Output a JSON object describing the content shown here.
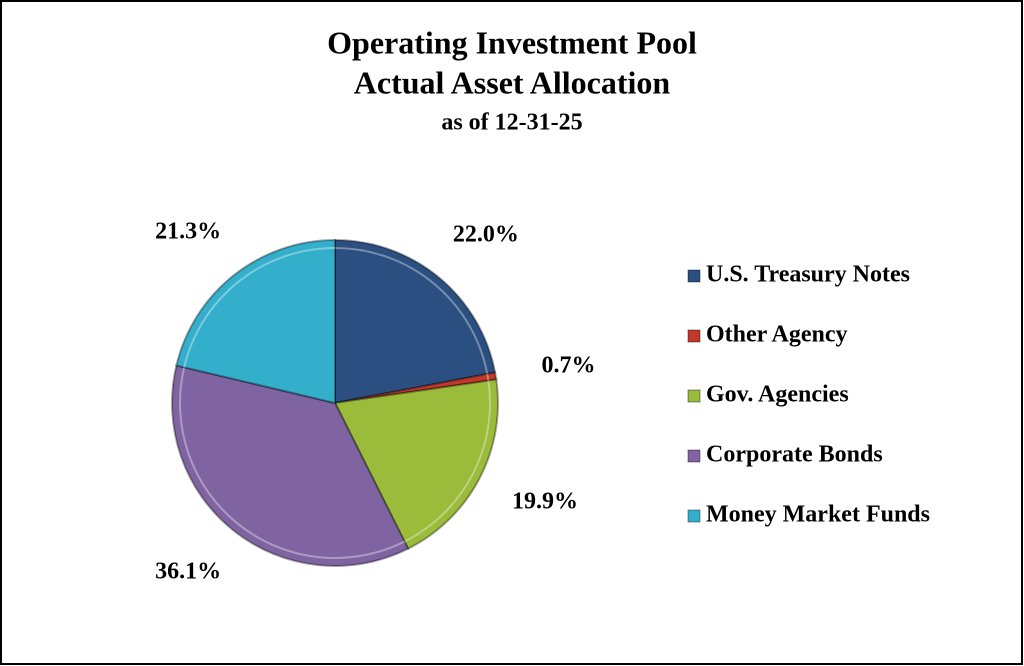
{
  "chart_data": {
    "type": "pie",
    "title": [
      "Operating Investment Pool",
      "Actual Asset Allocation"
    ],
    "subtitle": "as of 12-31-25",
    "categories": [
      "U.S. Treasury Notes",
      "Other Agency",
      "Gov. Agencies",
      "Corporate Bonds",
      "Money Market Funds"
    ],
    "values": [
      22.0,
      0.7,
      19.9,
      36.1,
      21.3
    ],
    "value_labels": [
      "22.0%",
      "0.7%",
      "19.9%",
      "36.1%",
      "21.3%"
    ],
    "colors": [
      "#2b4f80",
      "#c0392b",
      "#9bbb3b",
      "#8064a2",
      "#33afcc"
    ],
    "legend": "right"
  }
}
